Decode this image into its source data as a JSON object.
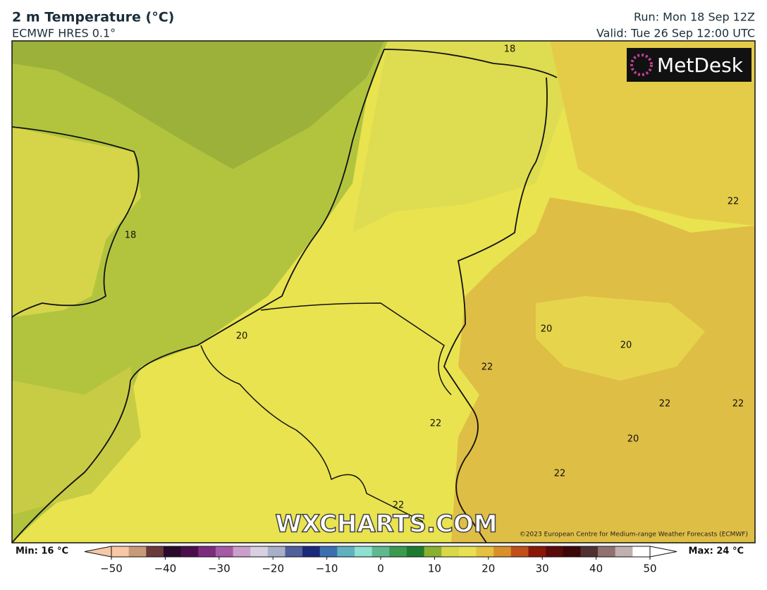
{
  "header": {
    "title": "2 m Temperature (°C)",
    "model": "ECMWF HRES 0.1°",
    "run": "Run: Mon 18 Sep 12Z",
    "valid": "Valid: Tue 26 Sep 12:00 UTC"
  },
  "logo": "MetDesk",
  "map": {
    "contour_labels": [
      "18",
      "18",
      "20",
      "20",
      "20",
      "22",
      "22",
      "22",
      "22",
      "20",
      "22",
      "22",
      "22"
    ],
    "watermark": "WXCHARTS.COM",
    "copyright": "©2023 European Centre for Medium-range Weather Forecasts (ECMWF)"
  },
  "legend": {
    "min": "Min: 16 °C",
    "max": "Max: 24 °C",
    "range": [
      -50,
      50
    ],
    "ticks": [
      {
        "value": -50,
        "label": "−50"
      },
      {
        "value": -40,
        "label": "−40"
      },
      {
        "value": -30,
        "label": "−30"
      },
      {
        "value": -20,
        "label": "−20"
      },
      {
        "value": -10,
        "label": "−10"
      },
      0,
      10,
      20,
      30,
      40,
      50
    ],
    "colors": [
      "#f7c7a6",
      "#c89a7a",
      "#6b3a3a",
      "#2a0a2a",
      "#4a0f4a",
      "#7b2d7b",
      "#a45aa4",
      "#c9a0c9",
      "#d8d0e0",
      "#a8b0c8",
      "#50609a",
      "#1a2a7a",
      "#3a70b0",
      "#60b0c0",
      "#8ee0d0",
      "#60b890",
      "#3a9a50",
      "#1e7a30",
      "#8ab030",
      "#d8d848",
      "#e8e050",
      "#e6c040",
      "#d89028",
      "#c05018",
      "#8a1808",
      "#5a0a0a",
      "#3a0808",
      "#503030",
      "#907070",
      "#c0b0b0",
      "#ffffff"
    ]
  }
}
